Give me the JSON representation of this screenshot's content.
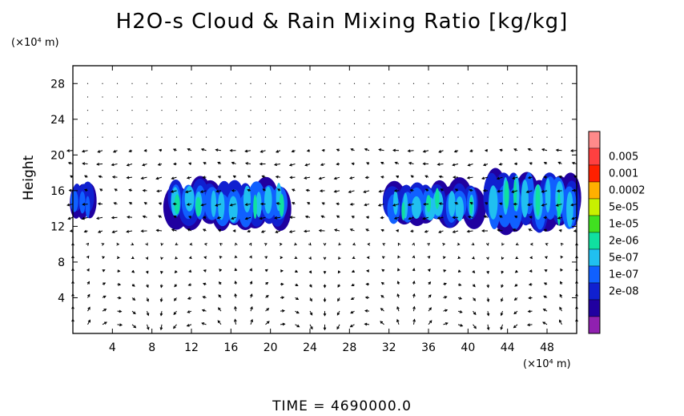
{
  "chart_data": {
    "type": "heatmap",
    "title": "H2O-s Cloud & Rain Mixing Ratio [kg/kg]",
    "ylabel": "Height",
    "y_unit": "(×10⁴ m)",
    "x_unit": "(×10⁴ m)",
    "xlim": [
      0,
      51
    ],
    "ylim": [
      0,
      30
    ],
    "x_ticks": [
      "4",
      "8",
      "12",
      "16",
      "20",
      "24",
      "28",
      "32",
      "36",
      "40",
      "44",
      "48"
    ],
    "x_tick_values": [
      4,
      8,
      12,
      16,
      20,
      24,
      28,
      32,
      36,
      40,
      44,
      48
    ],
    "y_ticks": [
      "4",
      "8",
      "12",
      "16",
      "20",
      "24",
      "28"
    ],
    "y_tick_values": [
      4,
      8,
      12,
      16,
      20,
      24,
      28
    ],
    "colorbar": {
      "levels": [
        "0.005",
        "0.001",
        "0.0002",
        "5e-05",
        "1e-05",
        "2e-06",
        "5e-07",
        "1e-07",
        "2e-08"
      ],
      "colors": [
        "#ff8a8a",
        "#ff4040",
        "#ff2000",
        "#ffb000",
        "#c8f000",
        "#40e020",
        "#10e0a0",
        "#20c0f0",
        "#1060ff",
        "#1020d0",
        "#2000a0",
        "#9020b0"
      ]
    },
    "cloud_regions": [
      {
        "x_range": [
          0,
          2
        ],
        "y_range": [
          13,
          16.5
        ],
        "max_level": "5e-07"
      },
      {
        "x_range": [
          10,
          21.5
        ],
        "y_range": [
          12.3,
          16.8
        ],
        "max_level": "5e-05"
      },
      {
        "x_range": [
          32,
          41
        ],
        "y_range": [
          12.3,
          16.5
        ],
        "max_level": "5e-05"
      },
      {
        "x_range": [
          42,
          51
        ],
        "y_range": [
          12.0,
          17.5
        ],
        "max_level": "5e-05"
      }
    ],
    "vectors": "wind vector field overlay",
    "time_label": "TIME  =  4690000.0"
  }
}
